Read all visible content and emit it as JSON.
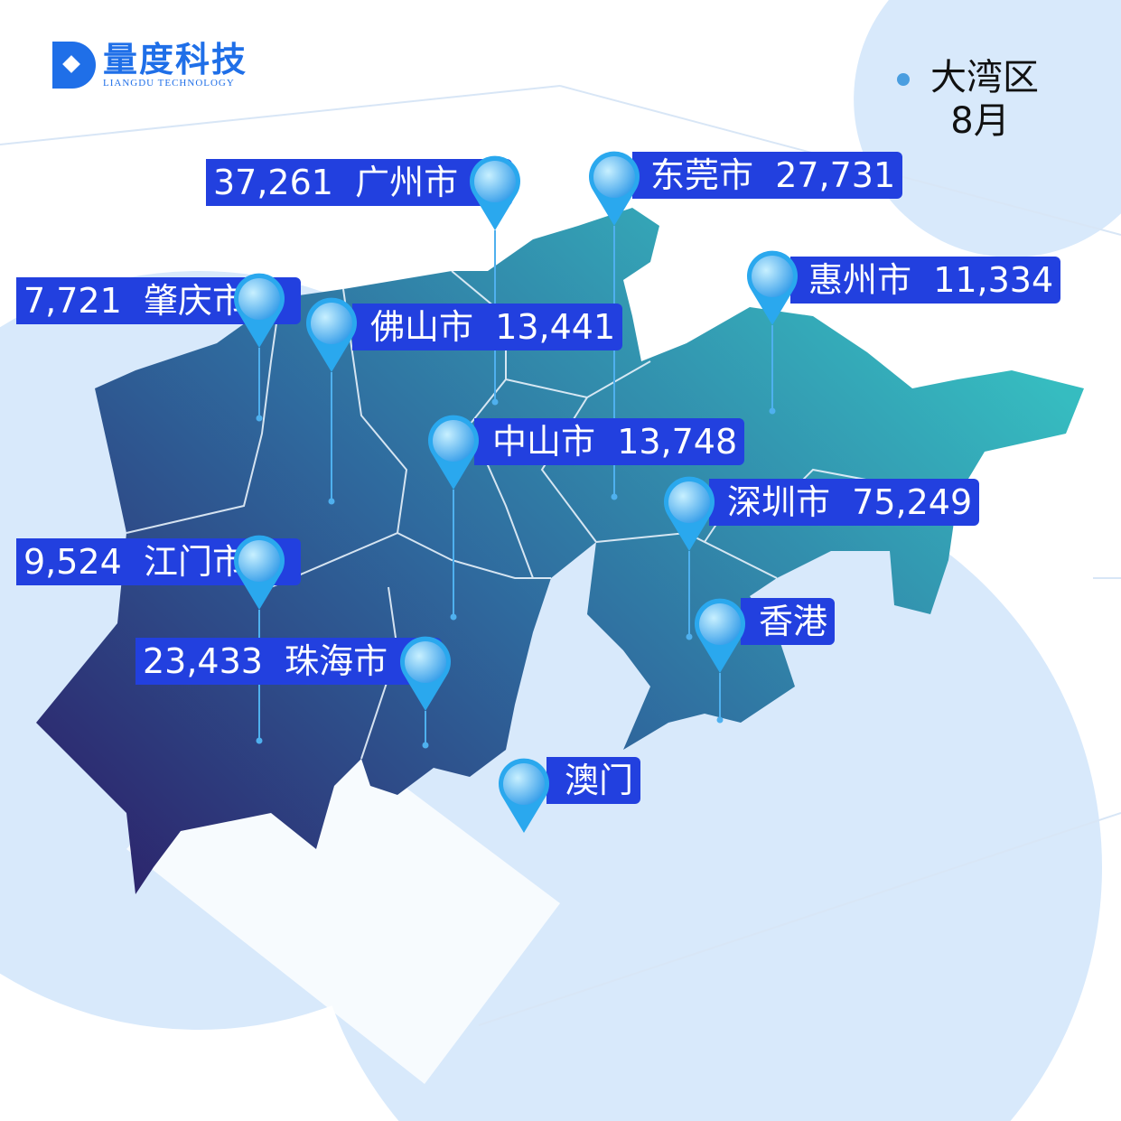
{
  "logo": {
    "title": "量度科技",
    "subtitle": "LIANGDU TECHNOLOGY",
    "color": "#1f6fe8"
  },
  "legend": {
    "region": "大湾区",
    "month": "8月",
    "dot_color": "#4a9ee0"
  },
  "colors": {
    "label_bg": "#2240df",
    "map_dark": "#2c1c66",
    "map_light": "#36bcc0",
    "background_circle": "#d8e9fb"
  },
  "cities": [
    {
      "name": "广州市",
      "value": "37,261",
      "order": "value-first"
    },
    {
      "name": "东莞市",
      "value": "27,731",
      "order": "name-first"
    },
    {
      "name": "惠州市",
      "value": "11,334",
      "order": "name-first"
    },
    {
      "name": "肇庆市",
      "value": "7,721",
      "order": "value-first"
    },
    {
      "name": "佛山市",
      "value": "13,441",
      "order": "name-first"
    },
    {
      "name": "中山市",
      "value": "13,748",
      "order": "name-first"
    },
    {
      "name": "深圳市",
      "value": "75,249",
      "order": "name-first"
    },
    {
      "name": "江门市",
      "value": "9,524",
      "order": "value-first"
    },
    {
      "name": "香港",
      "value": "",
      "order": "name-first"
    },
    {
      "name": "珠海市",
      "value": "23,433",
      "order": "value-first"
    },
    {
      "name": "澳门",
      "value": "",
      "order": "name-first"
    }
  ]
}
